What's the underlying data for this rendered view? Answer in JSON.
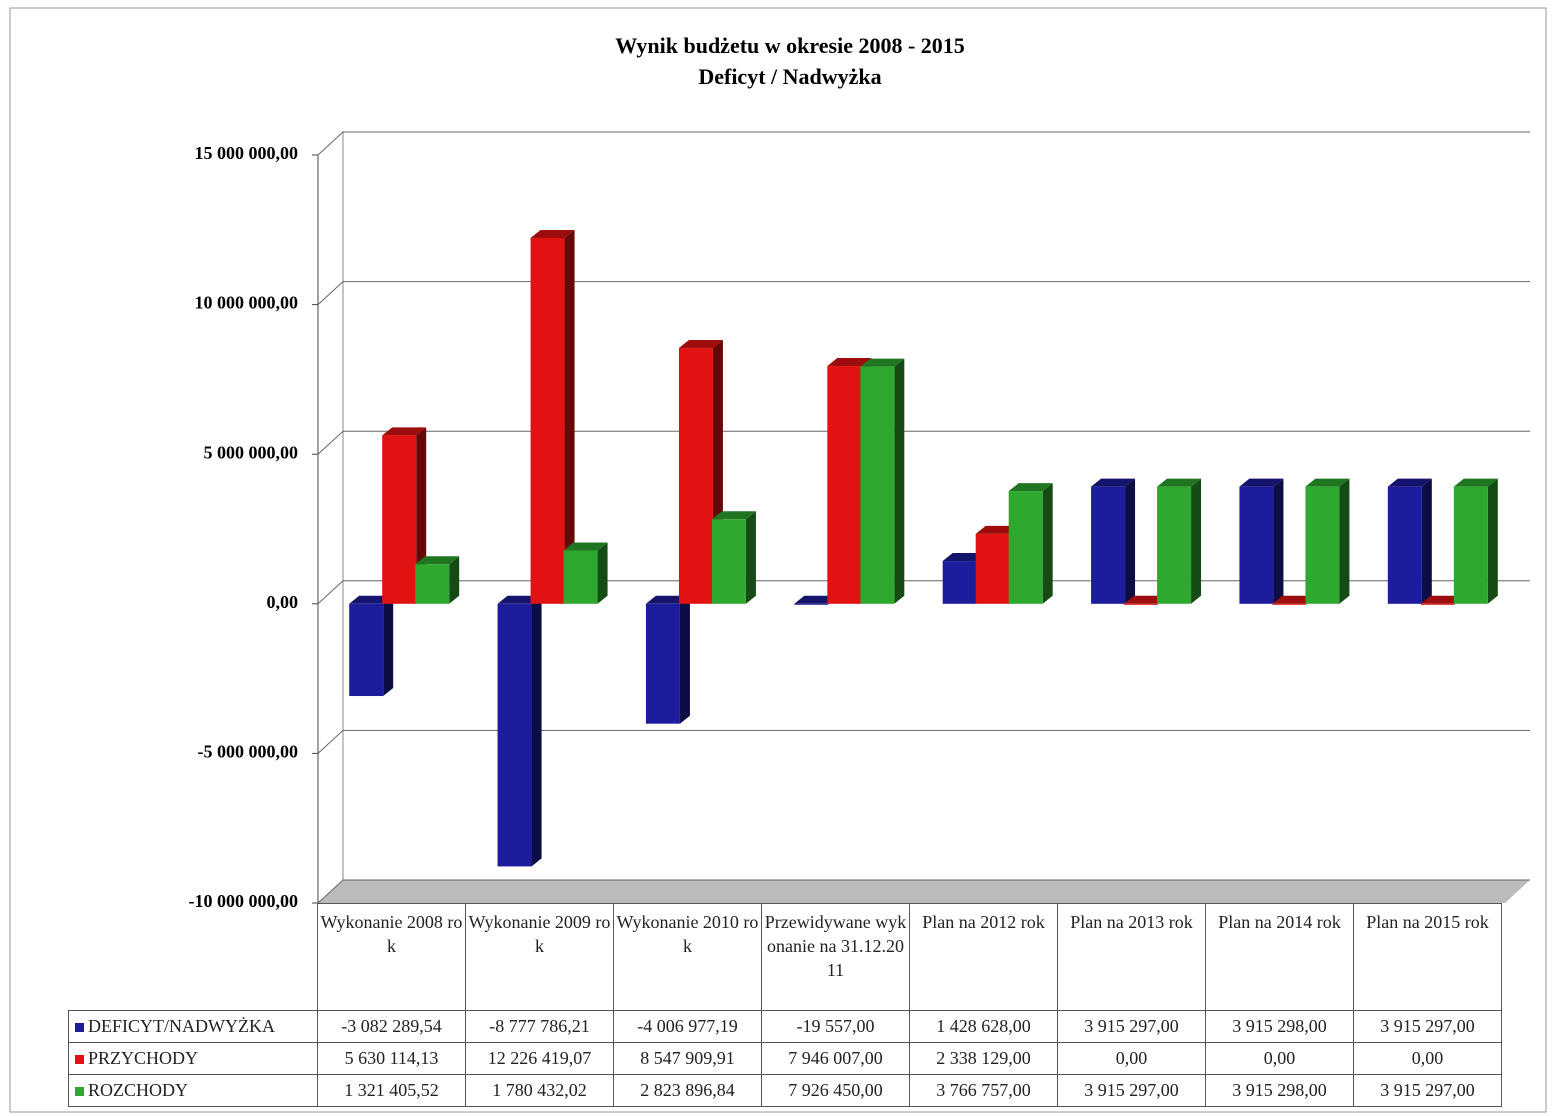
{
  "chart_data": {
    "type": "bar",
    "title": "Wynik budżetu w okresie 2008 - 2015",
    "subtitle": "Deficyt / Nadwyżka",
    "categories": [
      "Wykonanie 2008 rok",
      "Wykonanie 2009 rok",
      "Wykonanie 2010 rok",
      "Przewidywane wykonanie na 31.12.2011",
      "Plan na 2012 rok",
      "Plan na 2013 rok",
      "Plan na 2014 rok",
      "Plan na 2015 rok"
    ],
    "series": [
      {
        "name": "DEFICYT/NADWYŻKA",
        "color": "#1c1c9c",
        "values": [
          -3082289.54,
          -8777786.21,
          -4006977.19,
          -19557.0,
          1428628.0,
          3915297.0,
          3915298.0,
          3915297.0
        ],
        "value_labels": [
          "-3 082 289,54",
          "-8 777 786,21",
          "-4 006 977,19",
          "-19 557,00",
          "1 428 628,00",
          "3 915 297,00",
          "3 915 298,00",
          "3 915 297,00"
        ]
      },
      {
        "name": "PRZYCHODY",
        "color": "#e01212",
        "values": [
          5630114.13,
          12226419.07,
          8547909.91,
          7946007.0,
          2338129.0,
          0,
          0,
          0
        ],
        "value_labels": [
          "5 630 114,13",
          "12 226 419,07",
          "8 547 909,91",
          "7 946 007,00",
          "2 338 129,00",
          "0,00",
          "0,00",
          "0,00"
        ]
      },
      {
        "name": "ROZCHODY",
        "color": "#2ea82e",
        "values": [
          1321405.52,
          1780432.02,
          2823896.84,
          7926450.0,
          3766757.0,
          3915297.0,
          3915298.0,
          3915297.0
        ],
        "value_labels": [
          "1 321 405,52",
          "1 780 432,02",
          "2 823 896,84",
          "7 926 450,00",
          "3 766 757,00",
          "3 915 297,00",
          "3 915 298,00",
          "3 915 297,00"
        ]
      }
    ],
    "ylim": [
      -10000000,
      15000000
    ],
    "yticks": [
      {
        "value": -10000000,
        "label": "-10 000 000,00"
      },
      {
        "value": -5000000,
        "label": "-5 000 000,00"
      },
      {
        "value": 0,
        "label": "0,00"
      },
      {
        "value": 5000000,
        "label": "5 000 000,00"
      },
      {
        "value": 10000000,
        "label": "10 000 000,00"
      },
      {
        "value": 15000000,
        "label": "15 000 000,00"
      }
    ],
    "grid": true
  }
}
